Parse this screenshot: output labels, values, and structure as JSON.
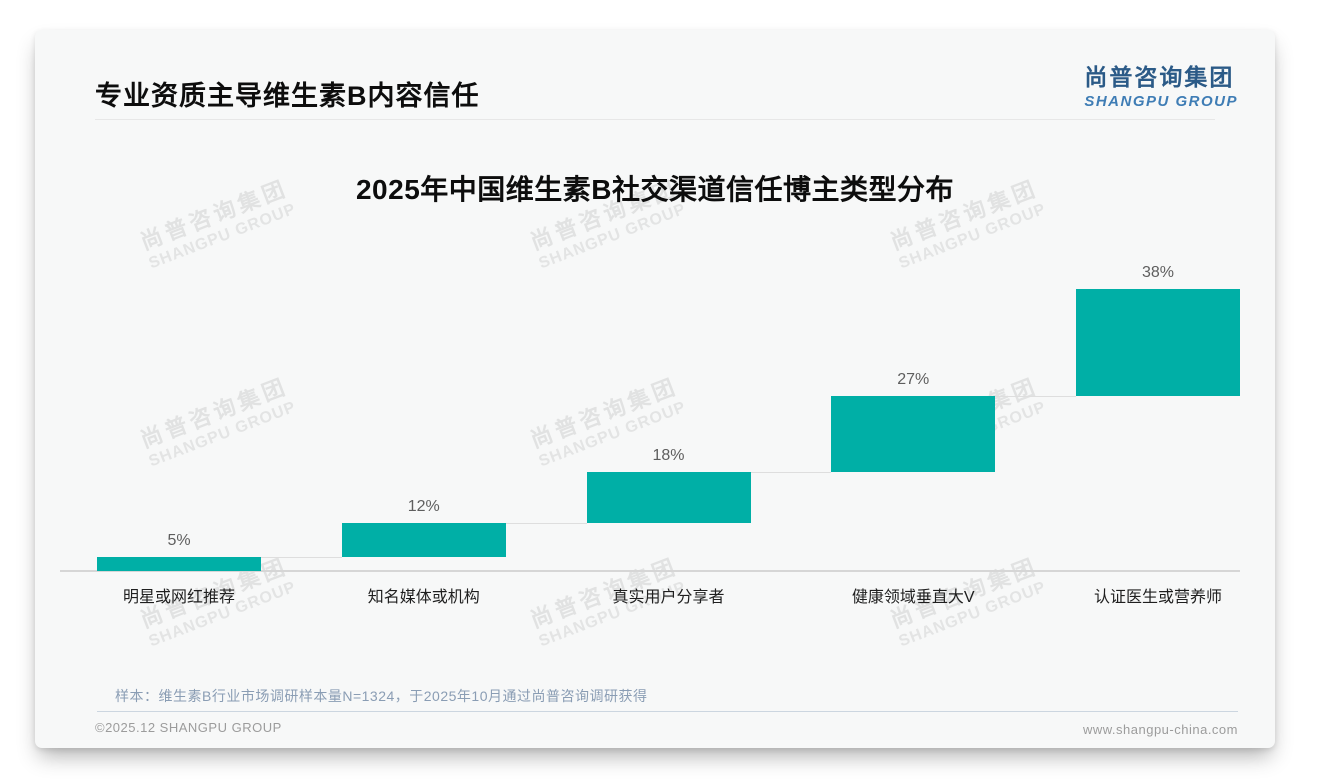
{
  "header": {
    "title": "专业资质主导维生素B内容信任",
    "logo_cn": "尚普咨询集团",
    "logo_en": "SHANGPU GROUP"
  },
  "watermark": {
    "line1": "尚普咨询集团",
    "line2": "SHANGPU GROUP"
  },
  "chart_data": {
    "type": "bar",
    "variant": "stepped-waterfall",
    "title": "2025年中国维生素B社交渠道信任博主类型分布",
    "categories": [
      "明星或网红推荐",
      "知名媒体或机构",
      "真实用户分享者",
      "健康领域垂直大V",
      "认证医生或营养师"
    ],
    "values": [
      5,
      12,
      18,
      27,
      38
    ],
    "value_labels": [
      "5%",
      "12%",
      "18%",
      "27%",
      "38%"
    ],
    "unit": "%",
    "cumulative": true,
    "ylim": [
      0,
      100
    ],
    "grid": false,
    "legend": "none",
    "bar_color": "#00AFA6",
    "axis_line_color": "#d6d6d6",
    "connector_color": "#dedede",
    "value_label_color": "#5e5e5e",
    "category_label_color": "#1f1f1f"
  },
  "footnote": {
    "text": "样本：维生素B行业市场调研样本量N=1324，于2025年10月通过尚普咨询调研获得"
  },
  "footer": {
    "left": "©2025.12 SHANGPU GROUP",
    "right": "www.shangpu-china.com"
  },
  "colors": {
    "accent_teal": "#00AFA6",
    "title_text": "#0d0d0d",
    "logo_cn": "#2b5a87",
    "logo_en": "#3f7db5",
    "note_text": "#8a9db4",
    "footer_text": "#9c9c9c",
    "card_bg": "#f7f8f8"
  }
}
